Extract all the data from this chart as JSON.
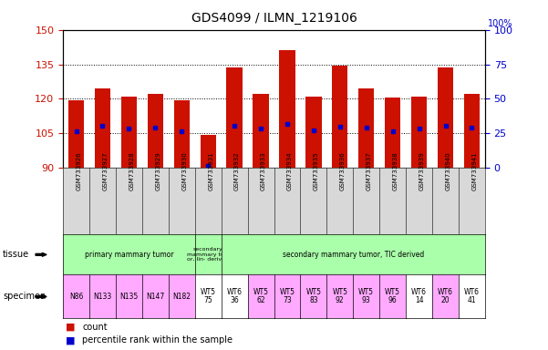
{
  "title": "GDS4099 / ILMN_1219106",
  "samples": [
    "GSM733926",
    "GSM733927",
    "GSM733928",
    "GSM733929",
    "GSM733930",
    "GSM733931",
    "GSM733932",
    "GSM733933",
    "GSM733934",
    "GSM733935",
    "GSM733936",
    "GSM733937",
    "GSM733938",
    "GSM733939",
    "GSM733940",
    "GSM733941"
  ],
  "counts": [
    119.5,
    124.5,
    121.0,
    122.0,
    119.5,
    104.5,
    133.5,
    122.0,
    141.0,
    121.0,
    134.5,
    124.5,
    120.5,
    121.0,
    133.5,
    122.0
  ],
  "percentiles": [
    106.0,
    108.5,
    107.0,
    107.5,
    106.0,
    91.0,
    108.5,
    107.0,
    109.0,
    106.5,
    108.0,
    107.5,
    106.0,
    107.0,
    108.5,
    107.5
  ],
  "ylim_left": [
    90,
    150
  ],
  "ylim_right": [
    0,
    100
  ],
  "yticks_left": [
    90,
    105,
    120,
    135,
    150
  ],
  "yticks_right": [
    0,
    25,
    50,
    75,
    100
  ],
  "bar_color": "#cc1100",
  "dot_color": "#0000cc",
  "tissue_data": [
    {
      "start": 0,
      "end": 5,
      "text": "primary mammary tumor",
      "color": "#aaffaa"
    },
    {
      "start": 5,
      "end": 6,
      "text": "secondary\nmammary tum\nor, lin- derived",
      "color": "#aaffaa"
    },
    {
      "start": 6,
      "end": 16,
      "text": "secondary mammary tumor, TIC derived",
      "color": "#aaffaa"
    }
  ],
  "specimen_data": [
    {
      "start": 0,
      "end": 1,
      "text": "N86",
      "color": "#ffaaff"
    },
    {
      "start": 1,
      "end": 2,
      "text": "N133",
      "color": "#ffaaff"
    },
    {
      "start": 2,
      "end": 3,
      "text": "N135",
      "color": "#ffaaff"
    },
    {
      "start": 3,
      "end": 4,
      "text": "N147",
      "color": "#ffaaff"
    },
    {
      "start": 4,
      "end": 5,
      "text": "N182",
      "color": "#ffaaff"
    },
    {
      "start": 5,
      "end": 6,
      "text": "WT5\n75",
      "color": "#ffffff"
    },
    {
      "start": 6,
      "end": 7,
      "text": "WT6\n36",
      "color": "#ffffff"
    },
    {
      "start": 7,
      "end": 8,
      "text": "WT5\n62",
      "color": "#ffaaff"
    },
    {
      "start": 8,
      "end": 9,
      "text": "WT5\n73",
      "color": "#ffaaff"
    },
    {
      "start": 9,
      "end": 10,
      "text": "WT5\n83",
      "color": "#ffaaff"
    },
    {
      "start": 10,
      "end": 11,
      "text": "WT5\n92",
      "color": "#ffaaff"
    },
    {
      "start": 11,
      "end": 12,
      "text": "WT5\n93",
      "color": "#ffaaff"
    },
    {
      "start": 12,
      "end": 13,
      "text": "WT5\n96",
      "color": "#ffaaff"
    },
    {
      "start": 13,
      "end": 14,
      "text": "WT6\n14",
      "color": "#ffffff"
    },
    {
      "start": 14,
      "end": 15,
      "text": "WT6\n20",
      "color": "#ffaaff"
    },
    {
      "start": 15,
      "end": 16,
      "text": "WT6\n41",
      "color": "#ffffff"
    }
  ],
  "legend_count_color": "#cc1100",
  "legend_dot_color": "#0000cc",
  "left_axis_color": "#cc1100",
  "right_axis_color": "#0000cc"
}
